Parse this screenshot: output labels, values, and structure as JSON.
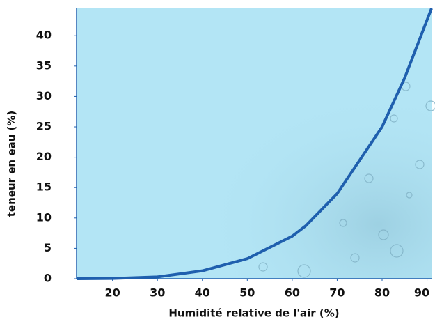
{
  "chart_data": {
    "type": "line",
    "x_label": "Humidité relative de l'air (%)",
    "y_label": "teneur en eau (%)",
    "x": [
      12,
      20,
      30,
      40,
      50,
      60,
      63,
      70,
      80,
      85,
      91
    ],
    "series": [
      {
        "color": "#1f5fae",
        "values": [
          0,
          0.05,
          0.3,
          1.3,
          3.3,
          7,
          8.7,
          14,
          25,
          33,
          44.5
        ]
      }
    ],
    "xlim": [
      12,
      91
    ],
    "ylim": [
      0,
      44.5
    ],
    "xticks": [
      20,
      30,
      40,
      50,
      60,
      70,
      80,
      90
    ],
    "yticks": [
      0,
      5,
      10,
      15,
      20,
      25,
      30,
      35,
      40
    ],
    "grid": false
  }
}
